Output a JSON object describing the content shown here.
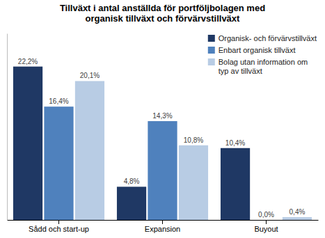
{
  "chart_data": {
    "type": "bar",
    "title": "Tillväxt i antal anställda för portföljbolagen med\norganisk tillväxt och förvärvstillväxt",
    "categories": [
      "Sådd och start-up",
      "Expansion",
      "Buyout"
    ],
    "series": [
      {
        "name": "Organisk- och förvärvstillväxt",
        "color": "#1F3864",
        "values": [
          22.2,
          4.8,
          10.4
        ],
        "value_labels": [
          "22,2%",
          "4,8%",
          "10,4%"
        ]
      },
      {
        "name": "Enbart organisk tillväxt",
        "color": "#4F81BD",
        "values": [
          16.4,
          14.3,
          0.0
        ],
        "value_labels": [
          "16,4%",
          "14,3%",
          "0,0%"
        ]
      },
      {
        "name": "Bolag utan information om\ntyp av tillväxt",
        "color": "#B8CCE4",
        "values": [
          20.1,
          10.8,
          0.4
        ],
        "value_labels": [
          "20,1%",
          "10,8%",
          "0,4%"
        ]
      }
    ],
    "ylim": [
      0,
      27
    ],
    "data_labels": true,
    "tick_labels": "x",
    "legend": "upper right",
    "grid": false
  }
}
